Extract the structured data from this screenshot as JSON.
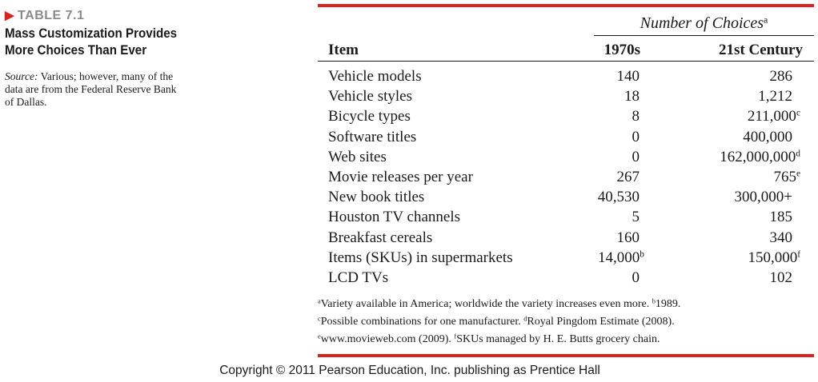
{
  "table_label": "TABLE 7.1",
  "title": "Mass Customization Provides More Choices Than Ever",
  "source_label": "Source:",
  "source_text": "Various; however, many of the data are from the Federal Reserve Bank of Dallas.",
  "group_header": "Number of Choices",
  "group_header_note": "a",
  "headers": {
    "item": "Item",
    "c1970": "1970s",
    "c21": "21st Century"
  },
  "rows": [
    {
      "item": "Vehicle models",
      "c1970": "140",
      "c1970_note": "",
      "c21": "286",
      "c21_note": ""
    },
    {
      "item": "Vehicle styles",
      "c1970": "18",
      "c1970_note": "",
      "c21": "1,212",
      "c21_note": ""
    },
    {
      "item": "Bicycle types",
      "c1970": "8",
      "c1970_note": "",
      "c21": "211,000",
      "c21_note": "c"
    },
    {
      "item": "Software titles",
      "c1970": "0",
      "c1970_note": "",
      "c21": "400,000",
      "c21_note": ""
    },
    {
      "item": "Web sites",
      "c1970": "0",
      "c1970_note": "",
      "c21": "162,000,000",
      "c21_note": "d"
    },
    {
      "item": "Movie releases per year",
      "c1970": "267",
      "c1970_note": "",
      "c21": "765",
      "c21_note": "e"
    },
    {
      "item": "New book titles",
      "c1970": "40,530",
      "c1970_note": "",
      "c21": "300,000+",
      "c21_note": ""
    },
    {
      "item": "Houston TV channels",
      "c1970": "5",
      "c1970_note": "",
      "c21": "185",
      "c21_note": ""
    },
    {
      "item": "Breakfast cereals",
      "c1970": "160",
      "c1970_note": "",
      "c21": "340",
      "c21_note": ""
    },
    {
      "item": "Items (SKUs) in supermarkets",
      "c1970": "14,000",
      "c1970_note": "b",
      "c21": "150,000",
      "c21_note": "f"
    },
    {
      "item": "LCD TVs",
      "c1970": "0",
      "c1970_note": "",
      "c21": "102",
      "c21_note": ""
    }
  ],
  "footnotes": [
    {
      "mark1": "a",
      "text1": "Variety available in America; worldwide the variety increases even more. ",
      "mark2": "b",
      "text2": "1989."
    },
    {
      "mark1": "c",
      "text1": "Possible combinations for one manufacturer. ",
      "mark2": "d",
      "text2": "Royal Pingdom Estimate (2008)."
    },
    {
      "mark1": "e",
      "text1": "www.movieweb.com (2009). ",
      "mark2": "f",
      "text2": "SKUs managed by H. E. Butts grocery chain."
    }
  ],
  "copyright": "Copyright © 2011 Pearson Education, Inc. publishing as Prentice Hall"
}
